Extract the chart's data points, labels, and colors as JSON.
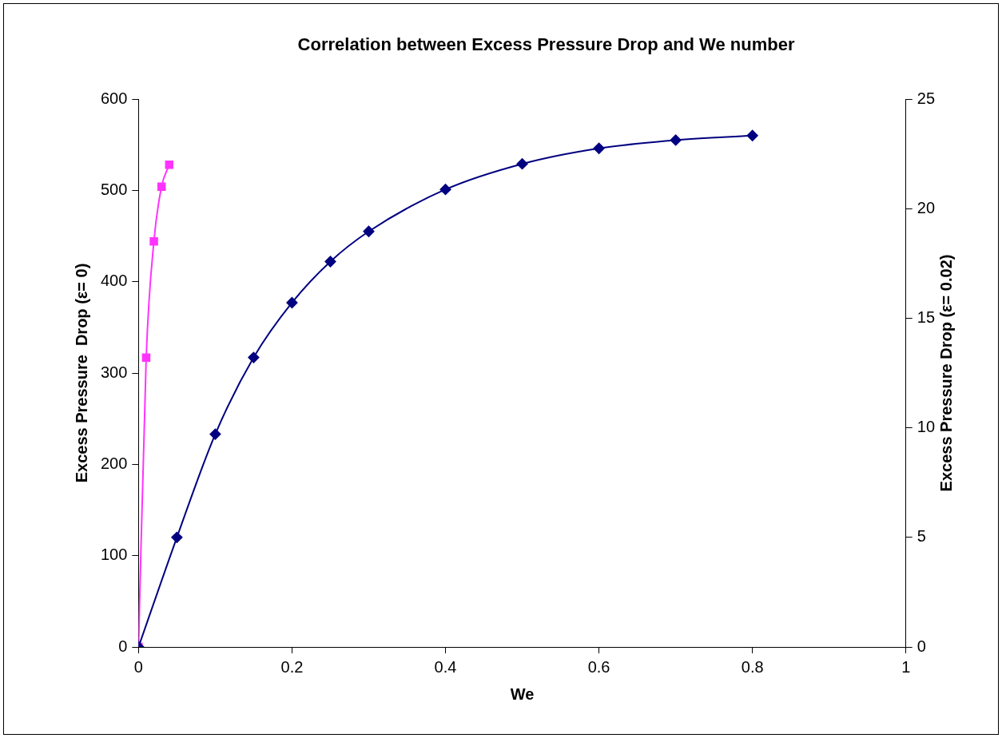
{
  "chart_data": {
    "type": "line",
    "title": "Correlation between Excess Pressure Drop and We number",
    "xlabel": "We",
    "ylabel": "Excess Pressure  Drop (ε= 0)",
    "y2label": "Excess Pressure Drop (ε= 0.02)",
    "xlim": [
      0,
      1
    ],
    "xticks": [
      0,
      0.2,
      0.4,
      0.6,
      0.8,
      1
    ],
    "ylim": [
      0,
      600
    ],
    "yticks": [
      0,
      100,
      200,
      300,
      400,
      500,
      600
    ],
    "y2lim": [
      0,
      25
    ],
    "y2ticks": [
      0,
      5,
      10,
      15,
      20,
      25
    ],
    "grid": false,
    "legend": false,
    "series": [
      {
        "color": "#000080",
        "marker": "diamond",
        "x": [
          0,
          0.05,
          0.1,
          0.15,
          0.2,
          0.25,
          0.3,
          0.4,
          0.5,
          0.6,
          0.7,
          0.8
        ],
        "values": [
          0,
          120,
          233,
          317,
          377,
          422,
          455,
          501,
          529,
          546,
          555,
          560
        ]
      },
      {
        "color": "#ff33ff",
        "marker": "square",
        "axis": "y2",
        "x": [
          0,
          0.01,
          0.02,
          0.03,
          0.04
        ],
        "values": [
          0,
          13.2,
          18.5,
          21,
          22
        ]
      }
    ]
  }
}
